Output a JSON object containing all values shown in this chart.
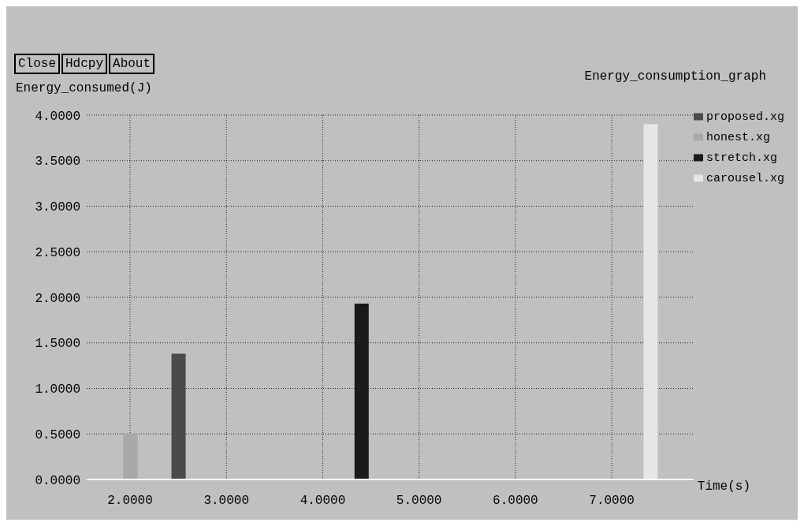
{
  "chart_data": {
    "type": "bar",
    "title": "Energy_consumption_graph",
    "xlabel": "Time(s)",
    "ylabel": "Energy_consumed(J)",
    "annotations": [
      "Close",
      "Hdcpy",
      "About"
    ],
    "series": [
      {
        "name": "proposed.xg",
        "color": "#4a4a4a",
        "x": [
          2.5
        ],
        "values": [
          1.38
        ]
      },
      {
        "name": "honest.xg",
        "color": "#a8a8a8",
        "x": [
          2.0
        ],
        "values": [
          0.5
        ]
      },
      {
        "name": "stretch.xg",
        "color": "#1a1a1a",
        "x": [
          4.4
        ],
        "values": [
          1.93
        ]
      },
      {
        "name": "carousel.xg",
        "color": "#e6e6e6",
        "x": [
          7.4
        ],
        "values": [
          3.9
        ]
      }
    ],
    "xlim": [
      1.55,
      7.85
    ],
    "xticks": [
      {
        "value": 2,
        "label": "2.0000"
      },
      {
        "value": 3,
        "label": "3.0000"
      },
      {
        "value": 4,
        "label": "4.0000"
      },
      {
        "value": 5,
        "label": "5.0000"
      },
      {
        "value": 6,
        "label": "6.0000"
      },
      {
        "value": 7,
        "label": "7.0000"
      }
    ],
    "ylim": [
      0,
      4
    ],
    "yticks": [
      {
        "value": 0,
        "label": "0.0000"
      },
      {
        "value": 0.5,
        "label": "0.5000"
      },
      {
        "value": 1,
        "label": "1.0000"
      },
      {
        "value": 1.5,
        "label": "1.5000"
      },
      {
        "value": 2,
        "label": "2.0000"
      },
      {
        "value": 2.5,
        "label": "2.5000"
      },
      {
        "value": 3,
        "label": "3.0000"
      },
      {
        "value": 3.5,
        "label": "3.5000"
      },
      {
        "value": 4,
        "label": "4.0000"
      }
    ],
    "grid": true,
    "legend": "top right"
  }
}
